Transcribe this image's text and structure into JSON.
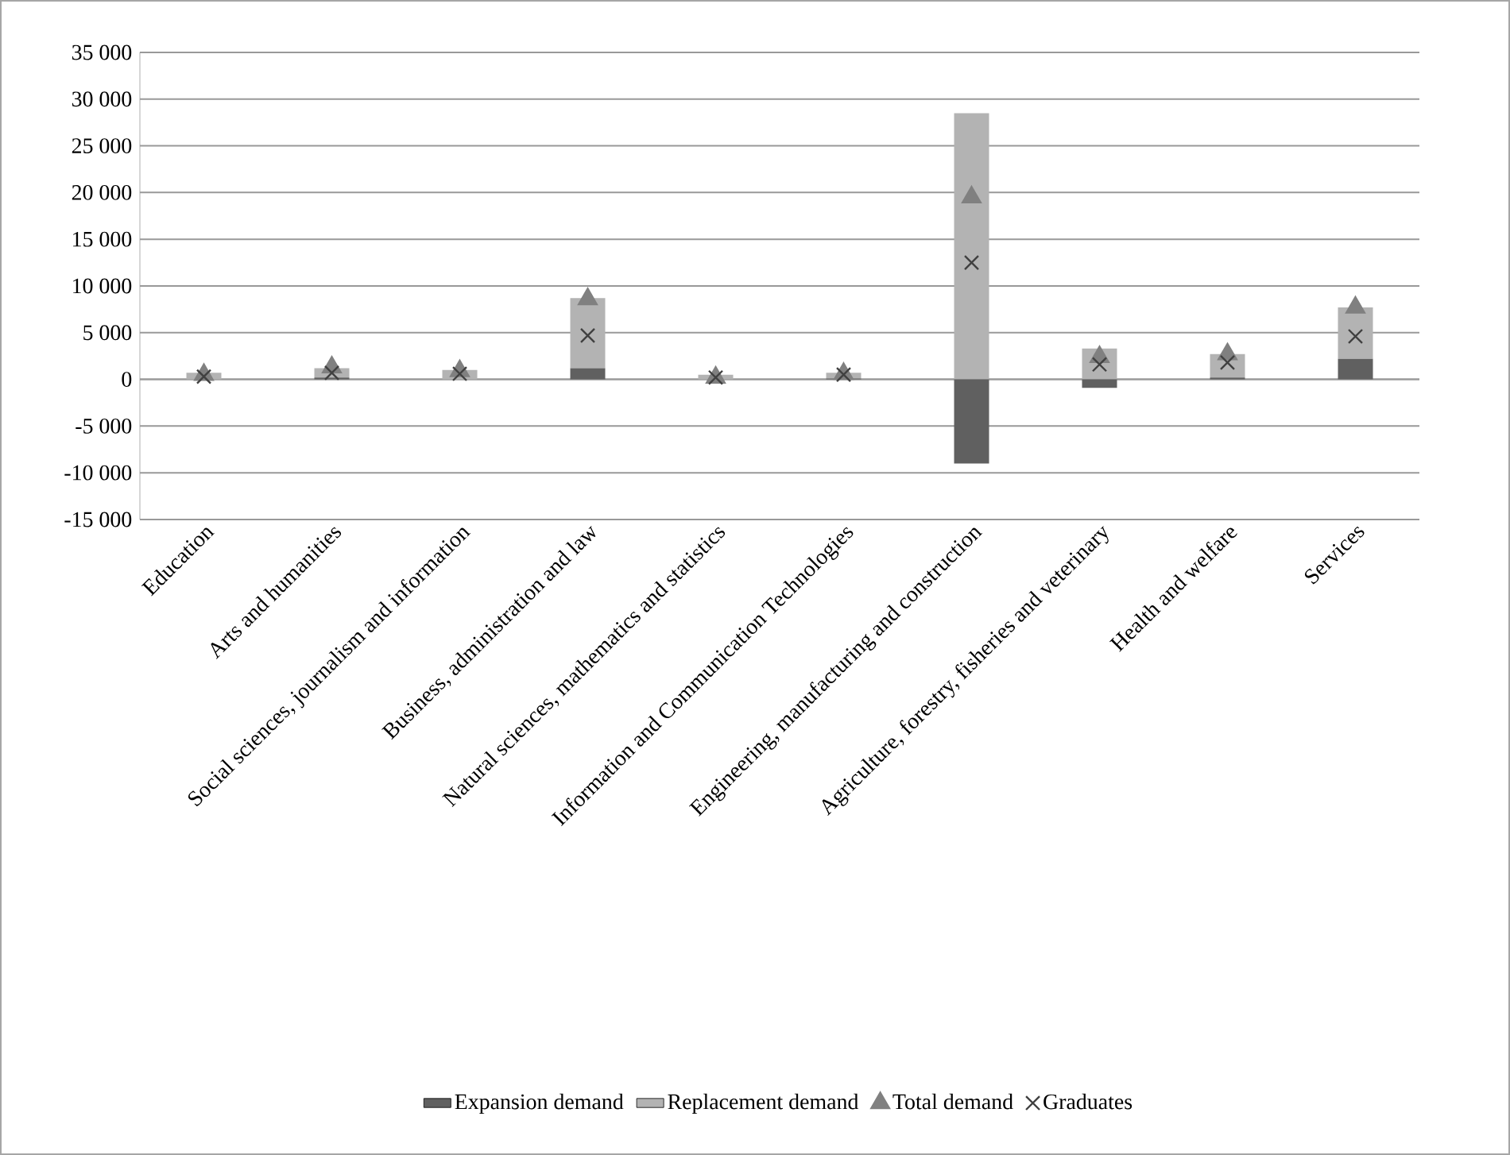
{
  "chart_data": {
    "type": "bar",
    "stacked": true,
    "categories": [
      "Education",
      "Arts and humanities",
      "Social sciences, journalism and information",
      "Business, administration and law",
      "Natural sciences, mathematics and statistics",
      "Information and Communication Technologies",
      "Engineering, manufacturing and construction",
      "Agriculture, forestry, fisheries and veterinary",
      "Health and welfare",
      "Services"
    ],
    "series": [
      {
        "name": "Expansion demand",
        "color": "#606060",
        "values": [
          null,
          200,
          0,
          1200,
          null,
          100,
          -9000,
          -900,
          200,
          2200
        ]
      },
      {
        "name": "Replacement demand",
        "color": "#b3b3b3",
        "values": [
          700,
          1000,
          1000,
          7500,
          500,
          600,
          28500,
          3300,
          2500,
          5500
        ]
      },
      {
        "name": "Total demand",
        "type": "scatter",
        "marker": "triangle",
        "color": "#808080",
        "values": [
          500,
          1300,
          900,
          8600,
          200,
          600,
          19500,
          2400,
          2700,
          7700
        ]
      },
      {
        "name": "Graduates",
        "type": "scatter",
        "marker": "cross",
        "color": "#404040",
        "values": [
          300,
          700,
          600,
          4700,
          200,
          500,
          12500,
          1600,
          1800,
          4600
        ]
      }
    ],
    "ylim": [
      -15000,
      35000
    ],
    "yticks": [
      {
        "value": -15000,
        "label": "-15 000"
      },
      {
        "value": -10000,
        "label": "-10 000"
      },
      {
        "value": -5000,
        "label": "-5 000"
      },
      0,
      {
        "value": 5000,
        "label": "5 000"
      },
      {
        "value": 10000,
        "label": "10 000"
      },
      {
        "value": 15000,
        "label": "15 000"
      },
      {
        "value": 20000,
        "label": "20 000"
      },
      {
        "value": 25000,
        "label": "25 000"
      },
      {
        "value": 30000,
        "label": "30 000"
      },
      {
        "value": 35000,
        "label": "35 000"
      }
    ],
    "grid": "y",
    "legend": "bottom"
  }
}
